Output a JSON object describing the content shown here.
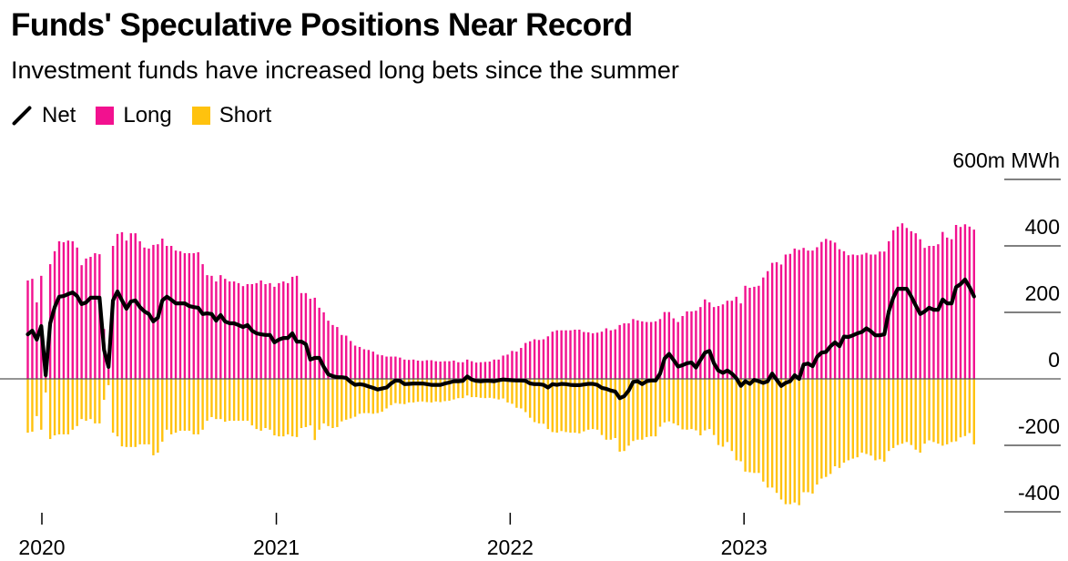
{
  "title": "Funds' Speculative Positions Near Record",
  "subtitle": "Investment funds have increased long bets since the summer",
  "legend": [
    {
      "name": "Net",
      "color": "#000000"
    },
    {
      "name": "Long",
      "color": "#f2118f"
    },
    {
      "name": "Short",
      "color": "#ffc20e"
    }
  ],
  "chart_data": {
    "type": "bar",
    "title": "Funds' Speculative Positions Near Record",
    "subtitle": "Investment funds have increased long bets since the summer",
    "unit_label": "600m MWh",
    "ylim": [
      -400,
      600
    ],
    "yticks": [
      600,
      400,
      200,
      0,
      -200,
      -400
    ],
    "ytick_labels": [
      "600m MWh",
      "400",
      "200",
      "0",
      "-200",
      "-400"
    ],
    "xticks": [
      "2020-01-01",
      "2021-01-01",
      "2022-01-01",
      "2023-01-01"
    ],
    "xtick_labels": [
      "2020",
      "2021",
      "2022",
      "2023"
    ],
    "grid": false,
    "legend_placement": "top-left",
    "x": [
      "2019-12-10",
      "2019-12-17",
      "2019-12-24",
      "2019-12-31",
      "2020-01-07",
      "2020-01-14",
      "2020-01-21",
      "2020-01-28",
      "2020-02-04",
      "2020-02-11",
      "2020-02-18",
      "2020-02-25",
      "2020-03-03",
      "2020-03-10",
      "2020-03-17",
      "2020-03-24",
      "2020-03-31",
      "2020-04-07",
      "2020-04-14",
      "2020-04-21",
      "2020-04-28",
      "2020-05-05",
      "2020-05-12",
      "2020-05-19",
      "2020-05-26",
      "2020-06-02",
      "2020-06-09",
      "2020-06-16",
      "2020-06-23",
      "2020-06-30",
      "2020-07-07",
      "2020-07-14",
      "2020-07-21",
      "2020-07-28",
      "2020-08-04",
      "2020-08-11",
      "2020-08-18",
      "2020-08-25",
      "2020-09-01",
      "2020-09-08",
      "2020-09-15",
      "2020-09-22",
      "2020-09-29",
      "2020-10-06",
      "2020-10-13",
      "2020-10-20",
      "2020-10-27",
      "2020-11-03",
      "2020-11-10",
      "2020-11-17",
      "2020-11-24",
      "2020-12-01",
      "2020-12-08",
      "2020-12-15",
      "2020-12-22",
      "2020-12-29",
      "2021-01-05",
      "2021-01-12",
      "2021-01-19",
      "2021-01-26",
      "2021-02-02",
      "2021-02-09",
      "2021-02-16",
      "2021-02-23",
      "2021-03-02",
      "2021-03-09",
      "2021-03-16",
      "2021-03-23",
      "2021-03-30",
      "2021-04-06",
      "2021-04-13",
      "2021-04-20",
      "2021-04-27",
      "2021-05-04",
      "2021-05-11",
      "2021-05-18",
      "2021-05-25",
      "2021-06-01",
      "2021-06-08",
      "2021-06-15",
      "2021-06-22",
      "2021-06-29",
      "2021-07-06",
      "2021-07-13",
      "2021-07-20",
      "2021-07-27",
      "2021-08-03",
      "2021-08-10",
      "2021-08-17",
      "2021-08-24",
      "2021-08-31",
      "2021-09-07",
      "2021-09-14",
      "2021-09-21",
      "2021-09-28",
      "2021-10-05",
      "2021-10-12",
      "2021-10-19",
      "2021-10-26",
      "2021-11-02",
      "2021-11-09",
      "2021-11-16",
      "2021-11-23",
      "2021-11-30",
      "2021-12-07",
      "2021-12-14",
      "2021-12-21",
      "2021-12-28",
      "2022-01-04",
      "2022-01-11",
      "2022-01-18",
      "2022-01-25",
      "2022-02-01",
      "2022-02-08",
      "2022-02-15",
      "2022-02-22",
      "2022-03-01",
      "2022-03-08",
      "2022-03-15",
      "2022-03-22",
      "2022-03-29",
      "2022-04-05",
      "2022-04-12",
      "2022-04-19",
      "2022-04-26",
      "2022-05-03",
      "2022-05-10",
      "2022-05-17",
      "2022-05-24",
      "2022-05-31",
      "2022-06-07",
      "2022-06-14",
      "2022-06-21",
      "2022-06-28",
      "2022-07-05",
      "2022-07-12",
      "2022-07-19",
      "2022-07-26",
      "2022-08-02",
      "2022-08-09",
      "2022-08-16",
      "2022-08-23",
      "2022-08-30",
      "2022-09-06",
      "2022-09-13",
      "2022-09-20",
      "2022-09-27",
      "2022-10-04",
      "2022-10-11",
      "2022-10-18",
      "2022-10-25",
      "2022-11-01",
      "2022-11-08",
      "2022-11-15",
      "2022-11-22",
      "2022-11-29",
      "2022-12-06",
      "2022-12-13",
      "2022-12-20",
      "2022-12-27",
      "2023-01-03",
      "2023-01-10",
      "2023-01-17",
      "2023-01-24",
      "2023-01-31",
      "2023-02-07",
      "2023-02-14",
      "2023-02-21",
      "2023-02-28",
      "2023-03-07",
      "2023-03-14",
      "2023-03-21",
      "2023-03-28",
      "2023-04-04",
      "2023-04-11",
      "2023-04-18",
      "2023-04-25",
      "2023-05-02",
      "2023-05-09",
      "2023-05-16",
      "2023-05-23",
      "2023-05-30",
      "2023-06-06",
      "2023-06-13",
      "2023-06-20",
      "2023-06-27",
      "2023-07-04",
      "2023-07-11",
      "2023-07-18",
      "2023-07-25",
      "2023-08-01",
      "2023-08-08",
      "2023-08-15",
      "2023-08-22",
      "2023-08-29",
      "2023-09-05",
      "2023-09-12",
      "2023-09-19",
      "2023-09-26",
      "2023-10-03",
      "2023-10-10",
      "2023-10-17",
      "2023-10-24",
      "2023-10-31",
      "2023-11-07",
      "2023-11-14",
      "2023-11-21",
      "2023-11-28",
      "2023-12-05",
      "2023-12-12",
      "2023-12-19",
      "2023-12-26"
    ],
    "series": [
      {
        "name": "Long",
        "type": "bar",
        "color": "#f2118f",
        "values": [
          296,
          301,
          230,
          310,
          52,
          345,
          384,
          414,
          411,
          416,
          414,
          395,
          342,
          362,
          367,
          378,
          375,
          150,
          55,
          400,
          436,
          441,
          416,
          438,
          438,
          414,
          395,
          392,
          403,
          405,
          422,
          400,
          400,
          386,
          384,
          378,
          378,
          378,
          381,
          345,
          312,
          310,
          293,
          312,
          301,
          293,
          293,
          288,
          279,
          285,
          285,
          288,
          296,
          285,
          288,
          277,
          288,
          293,
          288,
          307,
          310,
          258,
          258,
          241,
          244,
          214,
          200,
          175,
          162,
          156,
          132,
          130,
          114,
          100,
          96,
          89,
          87,
          82,
          73,
          71,
          67,
          67,
          67,
          64,
          58,
          57,
          58,
          55,
          54,
          56,
          56,
          53,
          52,
          53,
          53,
          55,
          50,
          50,
          58,
          53,
          49,
          50,
          51,
          52,
          58,
          58,
          70,
          73,
          84,
          82,
          93,
          108,
          113,
          119,
          117,
          119,
          128,
          142,
          146,
          146,
          146,
          146,
          148,
          148,
          141,
          140,
          137,
          139,
          142,
          152,
          146,
          149,
          162,
          167,
          167,
          180,
          176,
          173,
          171,
          171,
          173,
          180,
          201,
          201,
          182,
          171,
          189,
          203,
          203,
          205,
          216,
          239,
          230,
          216,
          219,
          224,
          235,
          235,
          247,
          227,
          280,
          274,
          277,
          280,
          305,
          324,
          349,
          351,
          344,
          374,
          376,
          392,
          388,
          394,
          386,
          386,
          396,
          412,
          421,
          416,
          410,
          390,
          384,
          372,
          374,
          372,
          374,
          379,
          374,
          374,
          383,
          383,
          414,
          447,
          458,
          468,
          454,
          444,
          438,
          420,
          394,
          400,
          400,
          405,
          442,
          425,
          420,
          463,
          457,
          465,
          458,
          449
        ]
      },
      {
        "name": "Short",
        "type": "bar",
        "color": "#ffc20e",
        "values": [
          -162,
          -159,
          -112,
          -153,
          -41,
          -181,
          -170,
          -167,
          -167,
          -167,
          -153,
          -142,
          -121,
          -126,
          -121,
          -134,
          -134,
          -63,
          -19,
          -162,
          -173,
          -203,
          -205,
          -205,
          -205,
          -197,
          -197,
          -197,
          -230,
          -222,
          -189,
          -153,
          -167,
          -162,
          -156,
          -156,
          -156,
          -167,
          -167,
          -153,
          -126,
          -115,
          -121,
          -121,
          -129,
          -126,
          -126,
          -126,
          -126,
          -126,
          -140,
          -151,
          -156,
          -148,
          -153,
          -170,
          -173,
          -173,
          -167,
          -173,
          -175,
          -148,
          -145,
          -140,
          -184,
          -153,
          -134,
          -142,
          -148,
          -145,
          -128,
          -123,
          -119,
          -114,
          -105,
          -103,
          -103,
          -105,
          -103,
          -99,
          -89,
          -79,
          -73,
          -75,
          -76,
          -71,
          -71,
          -69,
          -68,
          -70,
          -71,
          -68,
          -70,
          -67,
          -66,
          -62,
          -58,
          -58,
          -50,
          -55,
          -55,
          -57,
          -58,
          -57,
          -59,
          -62,
          -59,
          -71,
          -75,
          -87,
          -89,
          -100,
          -117,
          -130,
          -134,
          -135,
          -151,
          -160,
          -162,
          -157,
          -160,
          -162,
          -162,
          -164,
          -158,
          -153,
          -151,
          -153,
          -169,
          -183,
          -183,
          -178,
          -219,
          -217,
          -201,
          -187,
          -183,
          -183,
          -175,
          -173,
          -173,
          -144,
          -131,
          -128,
          -134,
          -140,
          -152,
          -153,
          -151,
          -155,
          -170,
          -155,
          -151,
          -169,
          -199,
          -204,
          -190,
          -217,
          -245,
          -248,
          -279,
          -281,
          -283,
          -283,
          -309,
          -327,
          -327,
          -343,
          -363,
          -377,
          -377,
          -372,
          -380,
          -341,
          -341,
          -345,
          -318,
          -300,
          -295,
          -286,
          -263,
          -268,
          -252,
          -245,
          -240,
          -236,
          -222,
          -226,
          -231,
          -245,
          -242,
          -249,
          -217,
          -208,
          -199,
          -195,
          -190,
          -199,
          -213,
          -222,
          -195,
          -185,
          -190,
          -195,
          -201,
          -197,
          -190,
          -188,
          -176,
          -172,
          -163,
          -197
        ]
      },
      {
        "name": "Net",
        "type": "line",
        "color": "#000000",
        "values": [
          134,
          145,
          118,
          159,
          11,
          167,
          216,
          247,
          249,
          255,
          260,
          249,
          225,
          230,
          244,
          244,
          244,
          87,
          36,
          236,
          263,
          236,
          211,
          233,
          236,
          216,
          203,
          195,
          173,
          184,
          236,
          247,
          238,
          227,
          227,
          227,
          219,
          216,
          214,
          195,
          197,
          195,
          175,
          192,
          173,
          167,
          167,
          162,
          156,
          162,
          145,
          137,
          134,
          132,
          132,
          110,
          118,
          123,
          123,
          137,
          112,
          112,
          104,
          58,
          63,
          63,
          36,
          14,
          8,
          5,
          5,
          3,
          -9,
          -18,
          -16,
          -18,
          -23,
          -27,
          -32,
          -29,
          -26,
          -14,
          -5,
          -6,
          -16,
          -15,
          -14,
          -14,
          -14,
          -16,
          -18,
          -18,
          -18,
          -14,
          -11,
          -7,
          -7,
          -6,
          7,
          -2,
          -6,
          -7,
          -6,
          -6,
          -7,
          -4,
          -2,
          -3,
          -4,
          -5,
          -5,
          -6,
          -14,
          -16,
          -16,
          -18,
          -26,
          -16,
          -18,
          -15,
          -16,
          -18,
          -19,
          -19,
          -17,
          -15,
          -15,
          -18,
          -27,
          -30,
          -35,
          -38,
          -58,
          -52,
          -35,
          -9,
          -7,
          -16,
          -7,
          -5,
          -5,
          16,
          61,
          75,
          57,
          37,
          41,
          47,
          49,
          34,
          57,
          79,
          84,
          47,
          25,
          18,
          25,
          16,
          2,
          -21,
          -7,
          -15,
          -3,
          -7,
          -12,
          -7,
          16,
          -3,
          -21,
          -12,
          -7,
          11,
          0,
          43,
          46,
          38,
          66,
          79,
          81,
          98,
          110,
          98,
          127,
          126,
          131,
          137,
          141,
          152,
          143,
          131,
          131,
          134,
          203,
          244,
          271,
          271,
          271,
          248,
          221,
          195,
          203,
          214,
          208,
          208,
          239,
          227,
          227,
          276,
          285,
          299,
          276,
          248
        ]
      }
    ]
  }
}
